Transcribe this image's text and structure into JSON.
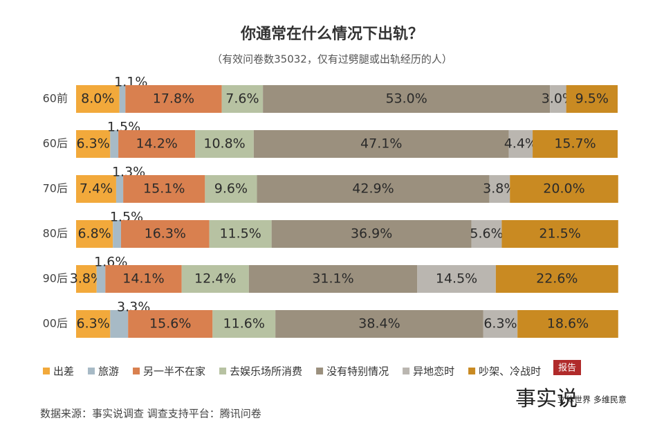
{
  "chart_data": {
    "type": "stacked-bar-horizontal",
    "title": "你通常在什么情况下出轨？",
    "subtitle": "（有效问卷数35032，仅有过劈腿或出轨经历的人）",
    "source": "数据来源：事实说调查  调查支持平台：腾讯问卷",
    "categories": [
      "60前",
      "60后",
      "70后",
      "80后",
      "90后",
      "00后"
    ],
    "xlim": [
      0,
      100
    ],
    "series": [
      {
        "name": "出差",
        "color": "#f2a93b",
        "values": [
          8.0,
          6.3,
          7.4,
          6.8,
          3.8,
          6.3
        ],
        "value_labels": [
          "8.0%",
          "6.3%",
          "7.4%",
          "6.8%",
          "3.8%",
          "6.3%"
        ]
      },
      {
        "name": "旅游",
        "color": "#a7bac6",
        "values": [
          1.1,
          1.5,
          1.3,
          1.5,
          1.6,
          3.3
        ],
        "value_labels": [
          "1.1%",
          "1.5%",
          "1.3%",
          "1.5%",
          "1.6%",
          "3.3%"
        ]
      },
      {
        "name": "另一半不在家",
        "color": "#d9804f",
        "values": [
          17.8,
          14.2,
          15.1,
          16.3,
          14.1,
          15.6
        ],
        "value_labels": [
          "17.8%",
          "14.2%",
          "15.1%",
          "16.3%",
          "14.1%",
          "15.6%"
        ]
      },
      {
        "name": "去娱乐场所消费",
        "color": "#b7c2a2",
        "values": [
          7.6,
          10.8,
          9.6,
          11.5,
          12.4,
          11.6
        ],
        "value_labels": [
          "7.6%",
          "10.8%",
          "9.6%",
          "11.5%",
          "12.4%",
          "11.6%"
        ]
      },
      {
        "name": "没有特别情况",
        "color": "#9b907e",
        "values": [
          53.0,
          47.1,
          42.9,
          36.9,
          31.1,
          38.4
        ],
        "value_labels": [
          "53.0%",
          "47.1%",
          "42.9%",
          "36.9%",
          "31.1%",
          "38.4%"
        ]
      },
      {
        "name": "异地恋时",
        "color": "#bab6b0",
        "values": [
          3.0,
          4.4,
          3.8,
          5.6,
          14.5,
          6.3
        ],
        "value_labels": [
          "3.0%",
          "4.4%",
          "3.8%",
          "5.6%",
          "14.5%",
          "6.3%"
        ]
      },
      {
        "name": "吵架、冷战时",
        "color": "#c98a22",
        "values": [
          9.5,
          15.7,
          20.0,
          21.5,
          22.6,
          18.6
        ],
        "value_labels": [
          "9.5%",
          "15.7%",
          "20.0%",
          "21.5%",
          "22.6%",
          "18.6%"
        ]
      }
    ],
    "logo": {
      "main": "事实说",
      "badge": "报告",
      "slogan": "立体世界 多维民意"
    }
  }
}
